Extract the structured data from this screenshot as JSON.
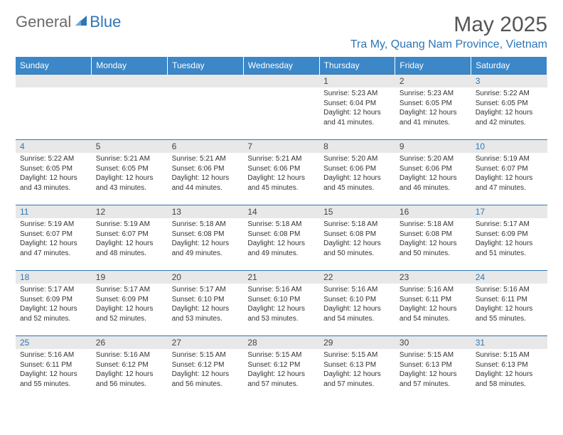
{
  "logo": {
    "text1": "General",
    "text2": "Blue"
  },
  "title": "May 2025",
  "location": "Tra My, Quang Nam Province, Vietnam",
  "colors": {
    "header_bg": "#3b87c8",
    "accent": "#2e76b6",
    "daynum_bg": "#e8e8e8",
    "text": "#333333"
  },
  "weekdays": [
    "Sunday",
    "Monday",
    "Tuesday",
    "Wednesday",
    "Thursday",
    "Friday",
    "Saturday"
  ],
  "weeks": [
    [
      null,
      null,
      null,
      null,
      {
        "n": "1",
        "sr": "5:23 AM",
        "ss": "6:04 PM",
        "dl": "12 hours and 41 minutes."
      },
      {
        "n": "2",
        "sr": "5:23 AM",
        "ss": "6:05 PM",
        "dl": "12 hours and 41 minutes."
      },
      {
        "n": "3",
        "sr": "5:22 AM",
        "ss": "6:05 PM",
        "dl": "12 hours and 42 minutes."
      }
    ],
    [
      {
        "n": "4",
        "sr": "5:22 AM",
        "ss": "6:05 PM",
        "dl": "12 hours and 43 minutes."
      },
      {
        "n": "5",
        "sr": "5:21 AM",
        "ss": "6:05 PM",
        "dl": "12 hours and 43 minutes."
      },
      {
        "n": "6",
        "sr": "5:21 AM",
        "ss": "6:06 PM",
        "dl": "12 hours and 44 minutes."
      },
      {
        "n": "7",
        "sr": "5:21 AM",
        "ss": "6:06 PM",
        "dl": "12 hours and 45 minutes."
      },
      {
        "n": "8",
        "sr": "5:20 AM",
        "ss": "6:06 PM",
        "dl": "12 hours and 45 minutes."
      },
      {
        "n": "9",
        "sr": "5:20 AM",
        "ss": "6:06 PM",
        "dl": "12 hours and 46 minutes."
      },
      {
        "n": "10",
        "sr": "5:19 AM",
        "ss": "6:07 PM",
        "dl": "12 hours and 47 minutes."
      }
    ],
    [
      {
        "n": "11",
        "sr": "5:19 AM",
        "ss": "6:07 PM",
        "dl": "12 hours and 47 minutes."
      },
      {
        "n": "12",
        "sr": "5:19 AM",
        "ss": "6:07 PM",
        "dl": "12 hours and 48 minutes."
      },
      {
        "n": "13",
        "sr": "5:18 AM",
        "ss": "6:08 PM",
        "dl": "12 hours and 49 minutes."
      },
      {
        "n": "14",
        "sr": "5:18 AM",
        "ss": "6:08 PM",
        "dl": "12 hours and 49 minutes."
      },
      {
        "n": "15",
        "sr": "5:18 AM",
        "ss": "6:08 PM",
        "dl": "12 hours and 50 minutes."
      },
      {
        "n": "16",
        "sr": "5:18 AM",
        "ss": "6:08 PM",
        "dl": "12 hours and 50 minutes."
      },
      {
        "n": "17",
        "sr": "5:17 AM",
        "ss": "6:09 PM",
        "dl": "12 hours and 51 minutes."
      }
    ],
    [
      {
        "n": "18",
        "sr": "5:17 AM",
        "ss": "6:09 PM",
        "dl": "12 hours and 52 minutes."
      },
      {
        "n": "19",
        "sr": "5:17 AM",
        "ss": "6:09 PM",
        "dl": "12 hours and 52 minutes."
      },
      {
        "n": "20",
        "sr": "5:17 AM",
        "ss": "6:10 PM",
        "dl": "12 hours and 53 minutes."
      },
      {
        "n": "21",
        "sr": "5:16 AM",
        "ss": "6:10 PM",
        "dl": "12 hours and 53 minutes."
      },
      {
        "n": "22",
        "sr": "5:16 AM",
        "ss": "6:10 PM",
        "dl": "12 hours and 54 minutes."
      },
      {
        "n": "23",
        "sr": "5:16 AM",
        "ss": "6:11 PM",
        "dl": "12 hours and 54 minutes."
      },
      {
        "n": "24",
        "sr": "5:16 AM",
        "ss": "6:11 PM",
        "dl": "12 hours and 55 minutes."
      }
    ],
    [
      {
        "n": "25",
        "sr": "5:16 AM",
        "ss": "6:11 PM",
        "dl": "12 hours and 55 minutes."
      },
      {
        "n": "26",
        "sr": "5:16 AM",
        "ss": "6:12 PM",
        "dl": "12 hours and 56 minutes."
      },
      {
        "n": "27",
        "sr": "5:15 AM",
        "ss": "6:12 PM",
        "dl": "12 hours and 56 minutes."
      },
      {
        "n": "28",
        "sr": "5:15 AM",
        "ss": "6:12 PM",
        "dl": "12 hours and 57 minutes."
      },
      {
        "n": "29",
        "sr": "5:15 AM",
        "ss": "6:13 PM",
        "dl": "12 hours and 57 minutes."
      },
      {
        "n": "30",
        "sr": "5:15 AM",
        "ss": "6:13 PM",
        "dl": "12 hours and 57 minutes."
      },
      {
        "n": "31",
        "sr": "5:15 AM",
        "ss": "6:13 PM",
        "dl": "12 hours and 58 minutes."
      }
    ]
  ],
  "labels": {
    "sunrise": "Sunrise:",
    "sunset": "Sunset:",
    "daylight": "Daylight:"
  }
}
